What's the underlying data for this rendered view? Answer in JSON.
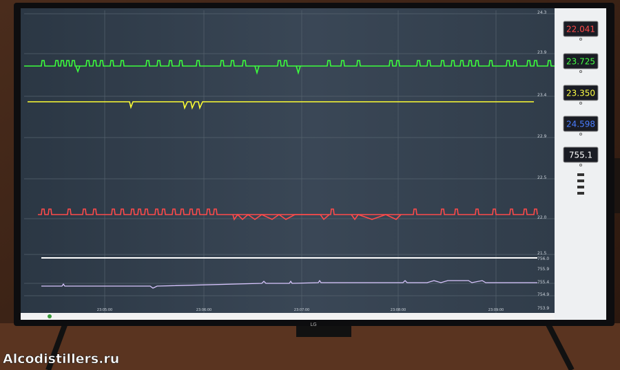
{
  "screen": {
    "right_axis_labels": [
      "24.3",
      "23.9",
      "23.4",
      "22.9",
      "22.5",
      "22.0",
      "21.5",
      "756.0",
      "755.9",
      "755.4",
      "754.9",
      "753.9"
    ],
    "time_labels": [
      "23:05:00",
      "23:06:00",
      "23:07:00",
      "23:08:00",
      "23:09:00"
    ],
    "readouts": [
      {
        "value": "22.041",
        "color": "#ff4a4a"
      },
      {
        "value": "23.725",
        "color": "#44ff44"
      },
      {
        "value": "23.350",
        "color": "#ffff44"
      },
      {
        "value": "24.598",
        "color": "#4a7dff"
      },
      {
        "value": "755.1",
        "color": "#ffffff"
      }
    ]
  },
  "tv_logo": "LG",
  "watermark": "Alcodistillers.ru"
}
